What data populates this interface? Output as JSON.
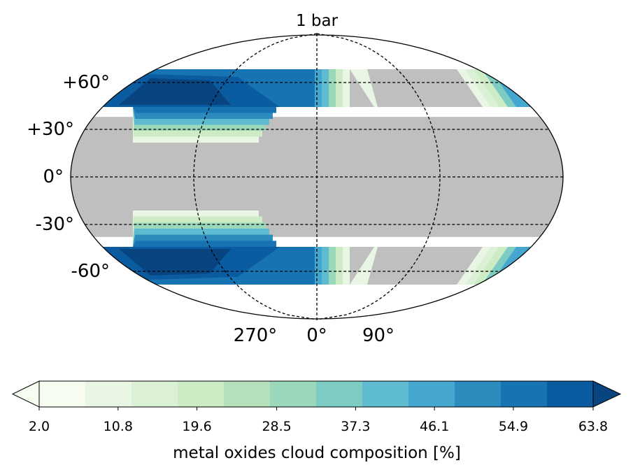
{
  "chart_data": {
    "type": "heatmap",
    "title": "1 bar",
    "projection": "Robinson (global)",
    "latitude_tick_labels": [
      "+60°",
      "+30°",
      "0°",
      "-30°",
      "-60°"
    ],
    "latitude_ticks": [
      60,
      30,
      0,
      -30,
      -60
    ],
    "longitude_tick_labels": [
      "270°",
      "0°",
      "90°"
    ],
    "longitude_ticks": [
      -90,
      0,
      90
    ],
    "grid": true,
    "no_data_color": "#bfbfbf",
    "colorbar": {
      "label": "metal oxides cloud composition [%]",
      "tick_labels": [
        "2.0",
        "10.8",
        "19.6",
        "28.5",
        "37.3",
        "46.1",
        "54.9",
        "63.8"
      ],
      "ticks": [
        2.0,
        10.8,
        19.6,
        28.5,
        37.3,
        46.1,
        54.9,
        63.8
      ],
      "levels": [
        2.0,
        7.15,
        12.3,
        17.45,
        22.6,
        27.75,
        32.9,
        38.05,
        43.2,
        48.35,
        53.5,
        58.65,
        63.8
      ],
      "extend": "both",
      "colormap": "GnBu",
      "colors": [
        "#f7fcf0",
        "#e9f6e4",
        "#dbf1d6",
        "#cdebc5",
        "#b4e1bb",
        "#9bd8bb",
        "#7cccc4",
        "#5fbbcf",
        "#45a7cf",
        "#2c8cbe",
        "#1773b2",
        "#0a5ba0",
        "#08447f"
      ]
    }
  }
}
